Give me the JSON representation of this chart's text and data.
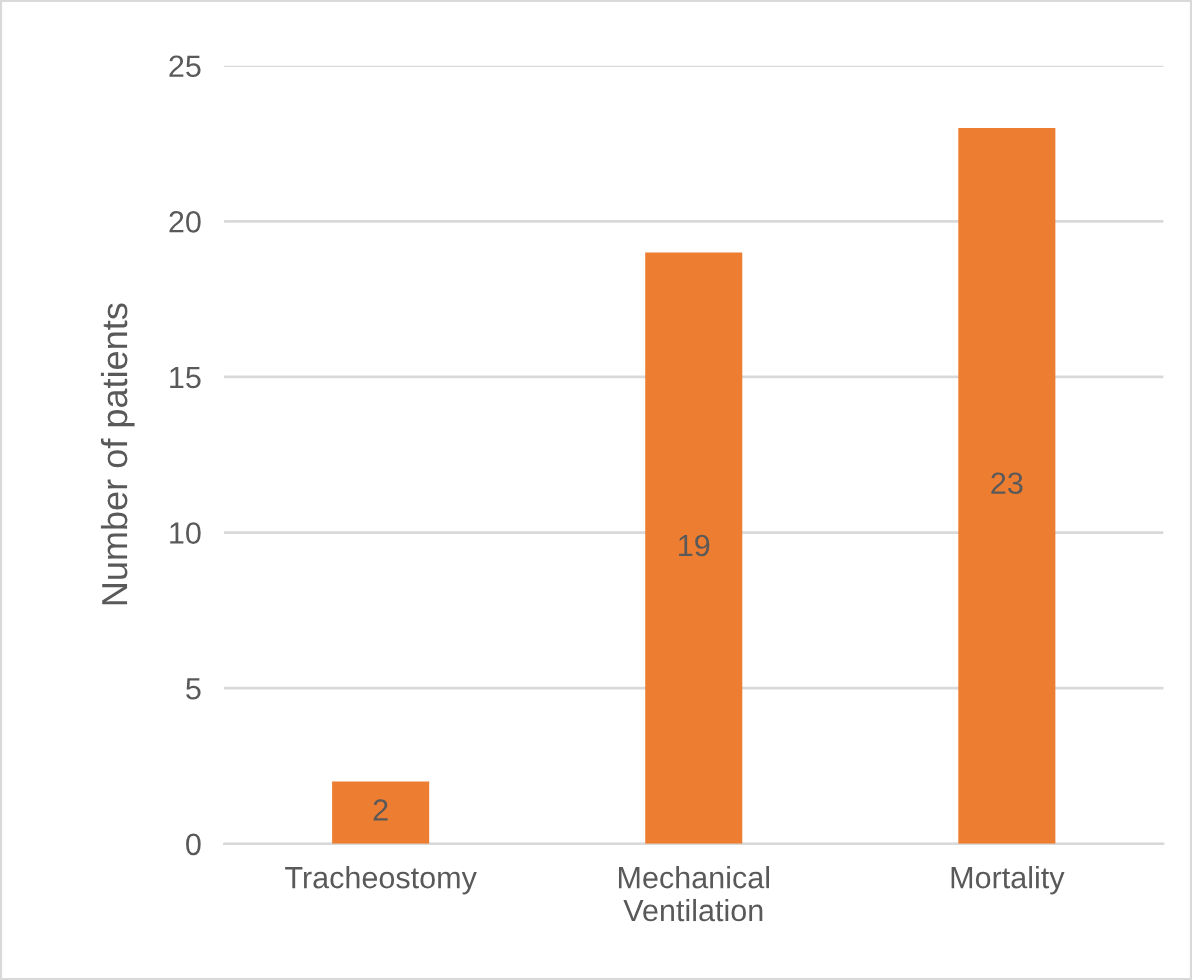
{
  "chart_data": {
    "type": "bar",
    "ylabel": "Number of patients",
    "categories": [
      "Tracheostomy",
      "Mechanical Ventilation",
      "Mortality"
    ],
    "values": [
      2,
      19,
      23
    ],
    "color": "#ed7d31",
    "ylim": [
      0,
      25
    ],
    "yticks": [
      0,
      5,
      10,
      15,
      20,
      25
    ],
    "grid": "y",
    "data_labels": true
  }
}
